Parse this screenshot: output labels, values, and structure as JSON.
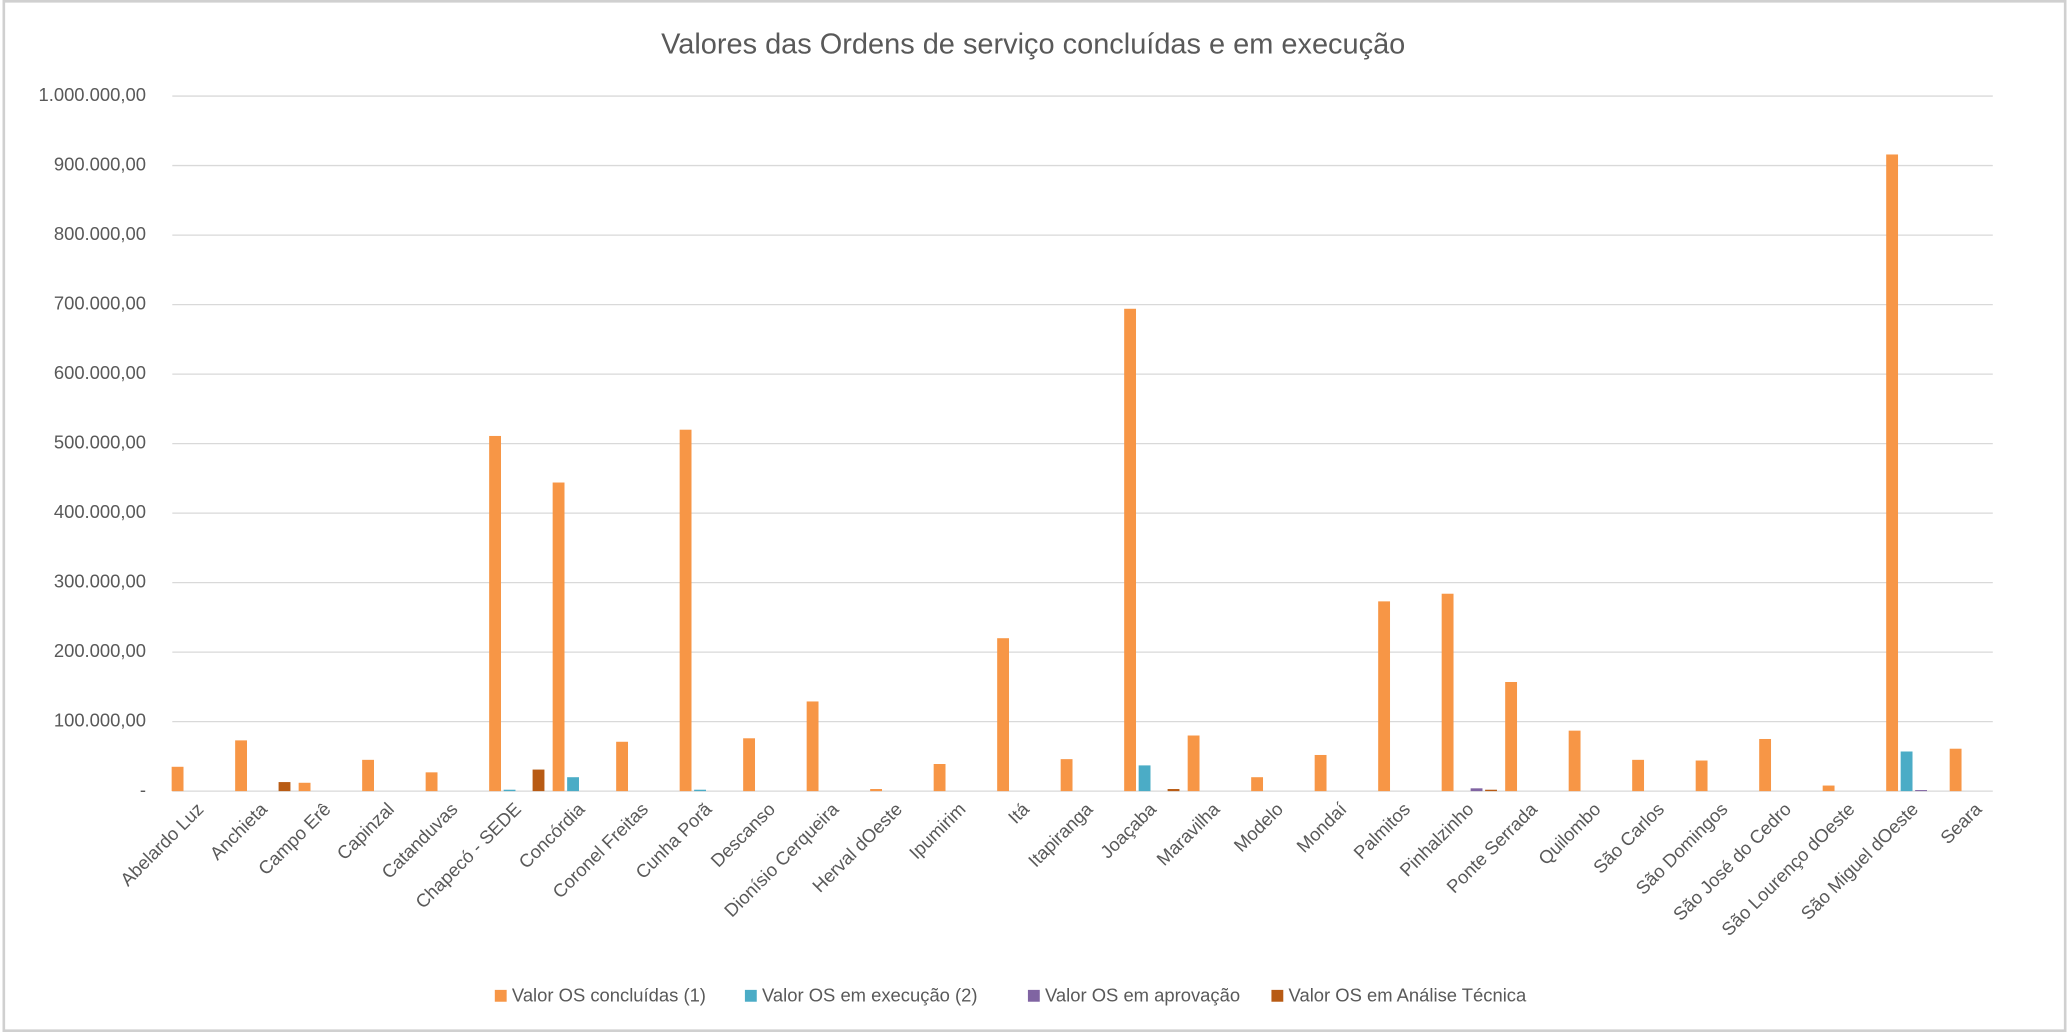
{
  "chart_data": {
    "type": "bar",
    "title": "Valores das Ordens de serviço concluídas e em execução",
    "categories": [
      "Abelardo Luz",
      "Anchieta",
      "Campo Erê",
      "Capinzal",
      "Catanduvas",
      "Chapecó - SEDE",
      "Concórdia",
      "Coronel Freitas",
      "Cunha Porã",
      "Descanso",
      "Dionísio Cerqueira",
      "Herval dOeste",
      "Ipumirim",
      "Itá",
      "Itapiranga",
      "Joaçaba",
      "Maravilha",
      "Modelo",
      "Mondaí",
      "Palmitos",
      "Pinhalzinho",
      "Ponte Serrada",
      "Quilombo",
      "São Carlos",
      "São Domingos",
      "São José do Cedro",
      "São Lourenço dOeste",
      "São Miguel dOeste",
      "Seara"
    ],
    "series": [
      {
        "name": "Valor OS concluídas  (1)",
        "color": "#f79646",
        "values": [
          35000,
          73000,
          12000,
          45000,
          27000,
          511000,
          444000,
          71000,
          520000,
          76000,
          129000,
          3000,
          39000,
          220000,
          46000,
          694000,
          80000,
          20000,
          52000,
          273000,
          284000,
          157000,
          87000,
          45000,
          44000,
          75000,
          8000,
          916000,
          61000
        ]
      },
      {
        "name": "Valor OS em execução  (2)",
        "color": "#4bacc6",
        "values": [
          0,
          0,
          0,
          0,
          0,
          2000,
          20000,
          0,
          2000,
          0,
          0,
          0,
          0,
          0,
          0,
          37000,
          0,
          0,
          0,
          0,
          0,
          0,
          0,
          0,
          0,
          0,
          0,
          57000,
          0
        ]
      },
      {
        "name": "Valor OS em aprovação",
        "color": "#8064a2",
        "values": [
          0,
          0,
          0,
          0,
          0,
          0,
          0,
          0,
          0,
          0,
          0,
          0,
          0,
          0,
          0,
          0,
          0,
          0,
          0,
          0,
          4000,
          0,
          0,
          0,
          0,
          0,
          0,
          1500,
          0
        ]
      },
      {
        "name": "Valor OS em Análise Técnica",
        "color": "#b85b14",
        "values": [
          0,
          13000,
          0,
          0,
          0,
          31000,
          0,
          0,
          0,
          0,
          0,
          0,
          0,
          0,
          0,
          3000,
          0,
          0,
          0,
          0,
          2000,
          0,
          0,
          0,
          0,
          0,
          0,
          0,
          0
        ]
      }
    ],
    "ylim": [
      0,
      1000000
    ],
    "yticks": [
      {
        "value": 0,
        "label": "-"
      },
      {
        "value": 100000,
        "label": "100.000,00"
      },
      {
        "value": 200000,
        "label": "200.000,00"
      },
      {
        "value": 300000,
        "label": "300.000,00"
      },
      {
        "value": 400000,
        "label": "400.000,00"
      },
      {
        "value": 500000,
        "label": "500.000,00"
      },
      {
        "value": 600000,
        "label": "600.000,00"
      },
      {
        "value": 700000,
        "label": "700.000,00"
      },
      {
        "value": 800000,
        "label": "800.000,00"
      },
      {
        "value": 900000,
        "label": "900.000,00"
      },
      {
        "value": 1000000,
        "label": "1.000.000,00"
      }
    ],
    "grid": true,
    "legend": "bottom"
  }
}
